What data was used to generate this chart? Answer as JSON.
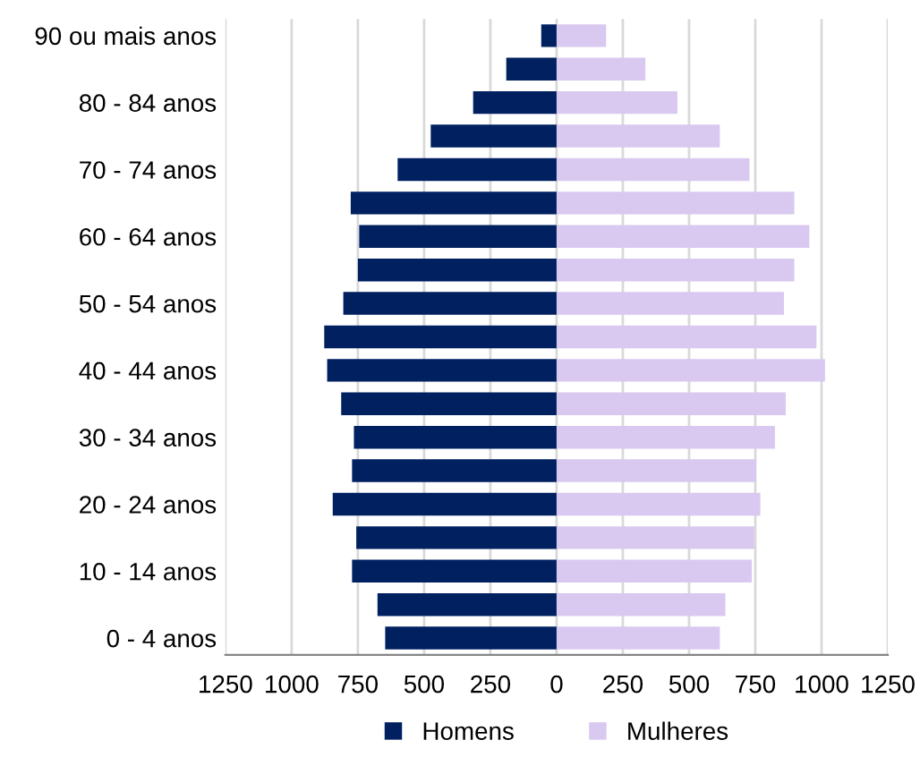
{
  "chart_data": {
    "type": "bar",
    "orientation": "horizontal",
    "stacked": true,
    "categories": [
      "90 ou mais anos",
      null,
      "80 - 84 anos",
      null,
      "70 - 74 anos",
      null,
      "60 - 64 anos",
      null,
      "50 - 54 anos",
      null,
      "40 - 44 anos",
      null,
      "30 - 34 anos",
      null,
      "20 - 24 anos",
      null,
      "10 - 14 anos",
      null,
      "0 - 4 anos"
    ],
    "series": [
      {
        "name": "Homens",
        "color": "#002060",
        "values": [
          -58,
          -190,
          -315,
          -475,
          -600,
          -777,
          -745,
          -750,
          -805,
          -877,
          -866,
          -813,
          -765,
          -772,
          -845,
          -756,
          -772,
          -676,
          -647
        ]
      },
      {
        "name": "Mulheres",
        "color": "#d9c9f0",
        "values": [
          187,
          335,
          456,
          616,
          728,
          897,
          954,
          897,
          858,
          981,
          1013,
          865,
          824,
          753,
          769,
          746,
          737,
          637,
          616
        ]
      }
    ],
    "xlim": [
      -1250,
      1250
    ],
    "xticks": [
      {
        "value": -1250,
        "label": "1250"
      },
      {
        "value": -1000,
        "label": "1000"
      },
      {
        "value": -750,
        "label": "750"
      },
      {
        "value": -500,
        "label": "500"
      },
      {
        "value": -250,
        "label": "250"
      },
      0,
      250,
      500,
      750,
      1000,
      1250
    ],
    "grid": "x",
    "legend": "bottom"
  }
}
